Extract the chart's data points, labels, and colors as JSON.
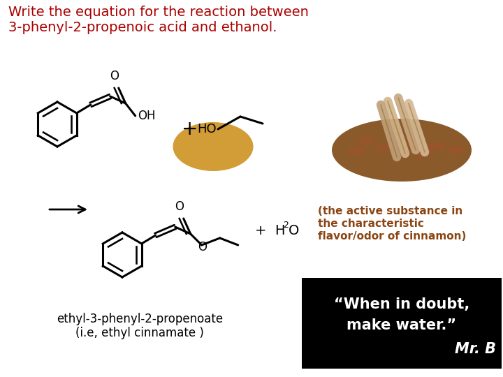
{
  "title_line1": "Write the equation for the reaction between",
  "title_line2": "3-phenyl-2-propenoic acid and ethanol.",
  "title_color": "#AA0000",
  "background_color": "#FFFFFF",
  "product_label": "ethyl-3-phenyl-2-propenoate",
  "product_sublabel": "(i.e, ethyl cinnamate )",
  "cinnamon_text_line1": "(the active substance in",
  "cinnamon_text_line2": "the characteristic",
  "cinnamon_text_line3": "flavor/odor of cinnamon)",
  "cinnamon_text_color": "#8B4513",
  "quote_line1": "“When in doubt,",
  "quote_line2": "make water.”",
  "quote_line3": "Mr. B",
  "quote_bg": "#000000",
  "quote_color": "#FFFFFF",
  "ellipse_color": "#C8860A",
  "label_color": "#000000",
  "figsize": [
    7.2,
    5.4
  ],
  "dpi": 100
}
